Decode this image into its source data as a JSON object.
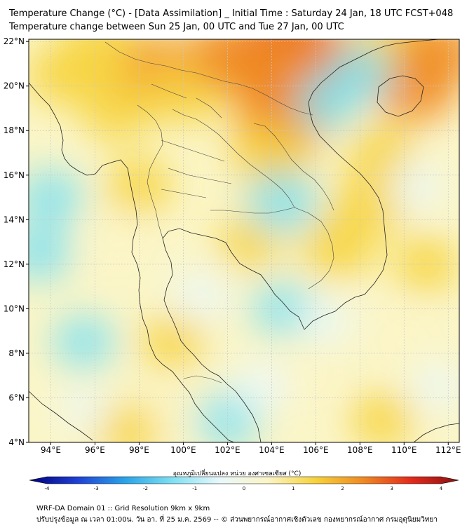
{
  "titles": {
    "line1": "Temperature Change (°C) - [Data Assimilation] _ Initial Time : Saturday 24 Jan, 18 UTC FCST+048",
    "line2": "Temperature change between Sun 25 Jan, 00 UTC and Tue 27 Jan, 00 UTC"
  },
  "axes": {
    "lat_labels": [
      "22°N",
      "20°N",
      "18°N",
      "16°N",
      "14°N",
      "12°N",
      "10°N",
      "8°N",
      "6°N",
      "4°N"
    ],
    "lon_labels": [
      "94°E",
      "96°E",
      "98°E",
      "100°E",
      "102°E",
      "104°E",
      "106°E",
      "108°E",
      "110°E",
      "112°E"
    ],
    "lat_values": [
      22,
      20,
      18,
      16,
      14,
      12,
      10,
      8,
      6,
      4
    ],
    "lon_values": [
      94,
      96,
      98,
      100,
      102,
      104,
      106,
      108,
      110,
      112
    ]
  },
  "colorbar": {
    "title": "อุณหภูมิเปลี่ยนแปลง หน่วย องศาเซลเซียส (°C)",
    "tick_labels": [
      "-4",
      "-3",
      "-2",
      "-1",
      "0",
      "1",
      "2",
      "3",
      "4"
    ],
    "tick_values": [
      -4,
      -3,
      -2,
      -1,
      0,
      1,
      2,
      3,
      4
    ],
    "colors": [
      "#00007a",
      "#1f3fd6",
      "#29a3e8",
      "#7fe0f2",
      "#eaf8fb",
      "#fbf5c6",
      "#f7d23a",
      "#f08a22",
      "#e42a1c",
      "#8b1010"
    ]
  },
  "footer": {
    "line1": "WRF-DA Domain 01 :: Grid Resolution 9km x 9km",
    "line2": "ปรับปรุงข้อมูล ณ เวลา 01:00น. วัน อา. ที่ 25 ม.ค. 2569 -- © ส่วนพยากรณ์อากาศเชิงตัวเลข กองพยากรณ์อากาศ กรมอุตุนิยมวิทยา"
  },
  "field_blobs": [
    {
      "lon": 104.7,
      "lat": 21.4,
      "value": 3.0
    },
    {
      "lon": 106.0,
      "lat": 21.0,
      "value": 2.4
    },
    {
      "lon": 105.0,
      "lat": 19.5,
      "value": 2.5
    },
    {
      "lon": 103.6,
      "lat": 20.8,
      "value": 2.0
    },
    {
      "lon": 104.3,
      "lat": 18.2,
      "value": 2.0
    },
    {
      "lon": 104.0,
      "lat": 16.8,
      "value": 1.7
    },
    {
      "lon": 98.5,
      "lat": 20.7,
      "value": 2.0
    },
    {
      "lon": 100.2,
      "lat": 19.8,
      "value": 1.6
    },
    {
      "lon": 97.0,
      "lat": 19.0,
      "value": 1.5
    },
    {
      "lon": 102.0,
      "lat": 21.4,
      "value": 1.8
    },
    {
      "lon": 94.5,
      "lat": 20.5,
      "value": 1.3
    },
    {
      "lon": 96.2,
      "lat": 21.7,
      "value": 1.5
    },
    {
      "lon": 110.5,
      "lat": 20.0,
      "value": 1.9
    },
    {
      "lon": 109.5,
      "lat": 22.0,
      "value": 1.5
    },
    {
      "lon": 111.5,
      "lat": 21.5,
      "value": 1.8
    },
    {
      "lon": 108.5,
      "lat": 14.8,
      "value": 1.5
    },
    {
      "lon": 107.0,
      "lat": 12.8,
      "value": 1.5
    },
    {
      "lon": 109.0,
      "lat": 17.0,
      "value": 1.1
    },
    {
      "lon": 98.0,
      "lat": 15.5,
      "value": 1.1
    },
    {
      "lon": 103.0,
      "lat": 13.0,
      "value": 1.0
    },
    {
      "lon": 99.5,
      "lat": 8.5,
      "value": 1.0
    },
    {
      "lon": 97.0,
      "lat": 13.0,
      "value": 0.8
    },
    {
      "lon": 111.0,
      "lat": 12.0,
      "value": 1.0
    },
    {
      "lon": 110.0,
      "lat": 8.5,
      "value": 0.8
    },
    {
      "lon": 109.0,
      "lat": 5.0,
      "value": 1.0
    },
    {
      "lon": 97.5,
      "lat": 4.5,
      "value": 1.0
    },
    {
      "lon": 100.0,
      "lat": 5.5,
      "value": 0.7
    },
    {
      "lon": 105.5,
      "lat": 7.0,
      "value": 0.7
    },
    {
      "lon": 104.5,
      "lat": 14.8,
      "value": -1.3
    },
    {
      "lon": 106.5,
      "lat": 19.3,
      "value": -1.0
    },
    {
      "lon": 108.0,
      "lat": 20.6,
      "value": -1.0
    },
    {
      "lon": 94.0,
      "lat": 15.0,
      "value": -1.0
    },
    {
      "lon": 93.5,
      "lat": 12.5,
      "value": -1.0
    },
    {
      "lon": 95.5,
      "lat": 8.5,
      "value": -0.9
    },
    {
      "lon": 104.5,
      "lat": 10.0,
      "value": -0.9
    },
    {
      "lon": 102.0,
      "lat": 5.0,
      "value": -1.0
    },
    {
      "lon": 103.5,
      "lat": 6.5,
      "value": -0.7
    },
    {
      "lon": 100.8,
      "lat": 10.6,
      "value": -0.7
    },
    {
      "lon": 106.5,
      "lat": 9.5,
      "value": -0.5
    },
    {
      "lon": 110.5,
      "lat": 15.5,
      "value": -0.6
    },
    {
      "lon": 111.5,
      "lat": 6.5,
      "value": -0.5
    },
    {
      "lon": 95.5,
      "lat": 5.5,
      "value": -0.3
    }
  ]
}
